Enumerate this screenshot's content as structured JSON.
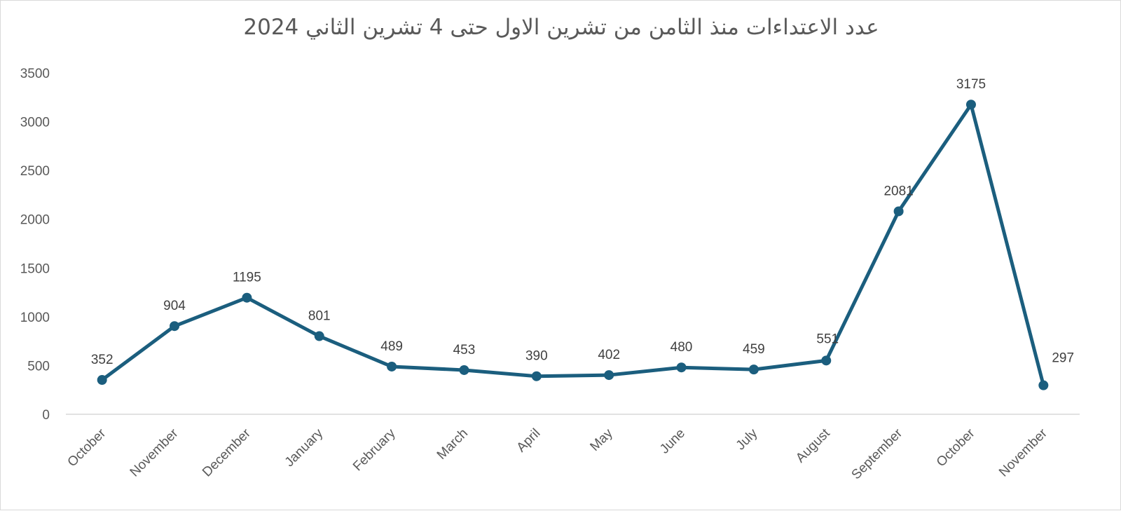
{
  "chart_data": {
    "type": "line",
    "title": "عدد الاعتداءات منذ الثامن من تشرين الاول حتى 4 تشرين الثاني 2024",
    "xlabel": "",
    "ylabel": "",
    "categories": [
      "October",
      "November",
      "December",
      "January",
      "February",
      "March",
      "April",
      "May",
      "June",
      "July",
      "August",
      "September",
      "October",
      "November"
    ],
    "series": [
      {
        "values": [
          352,
          904,
          1195,
          801,
          489,
          453,
          390,
          402,
          480,
          459,
          551,
          2081,
          3175,
          297
        ]
      }
    ],
    "ylim": [
      0,
      3500
    ],
    "yticks": [
      "0",
      "500",
      "1000",
      "1500",
      "2000",
      "2500",
      "3000",
      "3500"
    ],
    "grid": false,
    "legend": "none",
    "data_labels": true,
    "line_color": "#1b5e7e",
    "axis_color": "#d9d9d9",
    "text_color": "#595959"
  }
}
